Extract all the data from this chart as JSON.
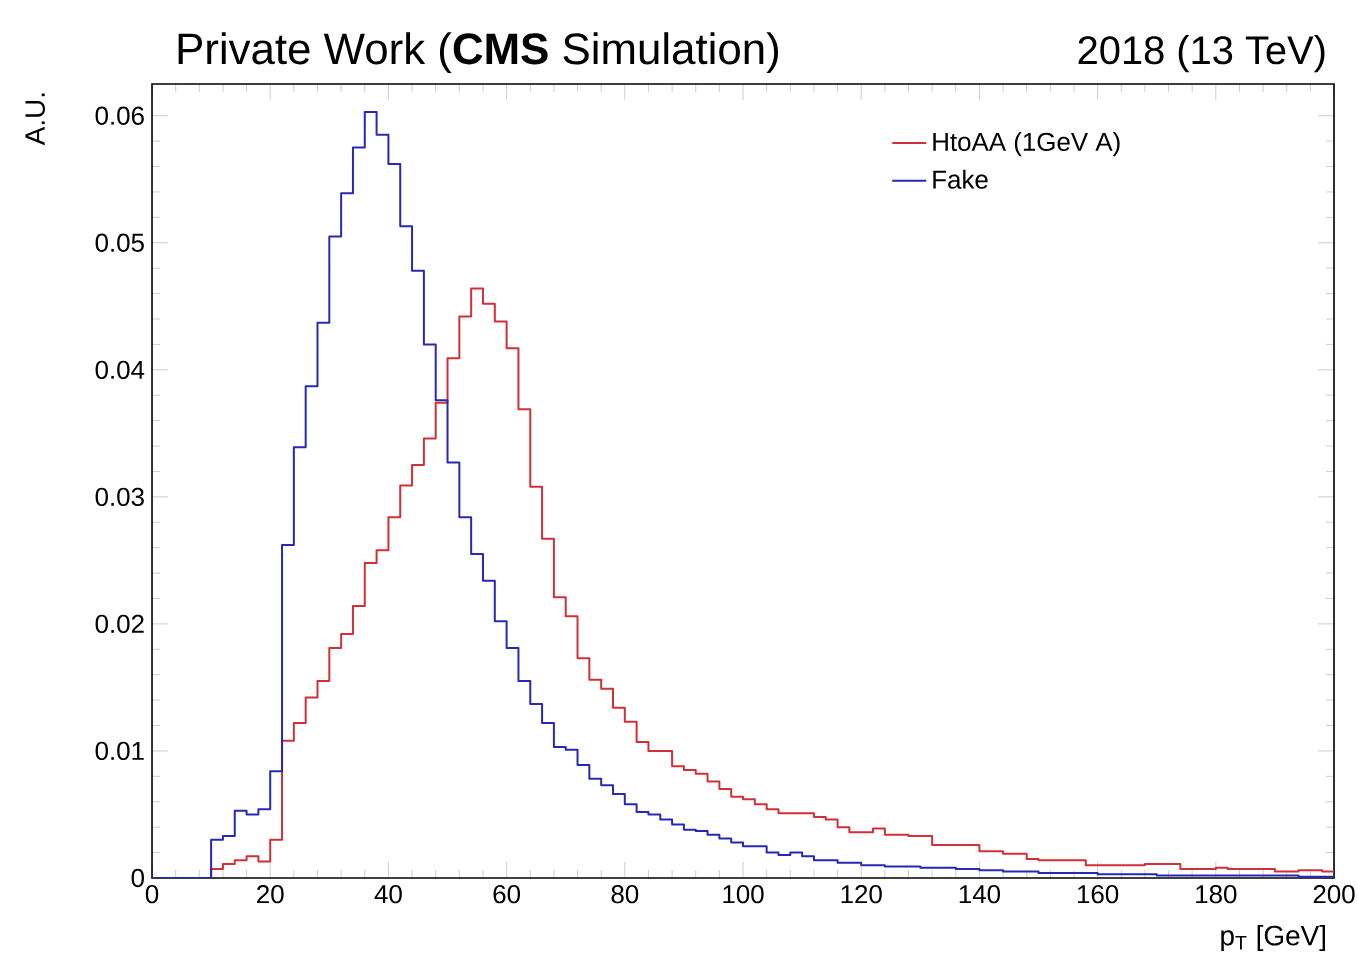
{
  "chart_data": {
    "type": "histogram",
    "title": "Private Work (**CMS** Simulation)",
    "annotations": [
      "2018 (13 TeV)"
    ],
    "xlabel": "p$_{T}$ [GeV]",
    "ylabel": "A.U.",
    "bins": [
      0,
      2,
      4,
      6,
      8,
      10,
      12,
      14,
      16,
      18,
      20,
      22,
      24,
      26,
      28,
      30,
      32,
      34,
      36,
      38,
      40,
      42,
      44,
      46,
      48,
      50,
      52,
      54,
      56,
      58,
      60,
      62,
      64,
      66,
      68,
      70,
      72,
      74,
      76,
      78,
      80,
      82,
      84,
      86,
      88,
      90,
      92,
      94,
      96,
      98,
      100,
      102,
      104,
      106,
      108,
      110,
      112,
      114,
      116,
      118,
      120,
      122,
      124,
      126,
      128,
      130,
      132,
      134,
      136,
      138,
      140,
      142,
      144,
      146,
      148,
      150,
      152,
      154,
      156,
      158,
      160,
      162,
      164,
      166,
      168,
      170,
      172,
      174,
      176,
      178,
      180,
      182,
      184,
      186,
      188,
      190,
      192,
      194,
      196,
      198,
      200
    ],
    "series": [
      {
        "name": "HtoAA (1GeV A)",
        "color": "#d03038",
        "values": [
          0,
          0,
          0,
          0,
          0,
          0.0007,
          0.0011,
          0.0014,
          0.0017,
          0.0013,
          0.003,
          0.0108,
          0.0122,
          0.0142,
          0.0155,
          0.0181,
          0.0192,
          0.0214,
          0.0248,
          0.0258,
          0.0284,
          0.0309,
          0.0325,
          0.0346,
          0.0374,
          0.0409,
          0.0442,
          0.0464,
          0.0452,
          0.0438,
          0.0417,
          0.0369,
          0.0308,
          0.0267,
          0.0221,
          0.0206,
          0.0173,
          0.0156,
          0.0149,
          0.0134,
          0.0123,
          0.0107,
          0.01,
          0.01,
          0.0088,
          0.0085,
          0.0082,
          0.0076,
          0.007,
          0.0064,
          0.0062,
          0.0058,
          0.0054,
          0.0051,
          0.0051,
          0.0051,
          0.0048,
          0.0046,
          0.004,
          0.0036,
          0.0036,
          0.0039,
          0.0034,
          0.0034,
          0.0033,
          0.0033,
          0.0026,
          0.0026,
          0.0026,
          0.0026,
          0.0021,
          0.0021,
          0.0019,
          0.0019,
          0.0015,
          0.0014,
          0.0014,
          0.0014,
          0.0014,
          0.001,
          0.001,
          0.001,
          0.001,
          0.001,
          0.0011,
          0.0011,
          0.0011,
          0.0007,
          0.0007,
          0.0007,
          0.0008,
          0.0007,
          0.0007,
          0.0007,
          0.0007,
          0.0005,
          0.0005,
          0.0006,
          0.0006,
          0.0005
        ]
      },
      {
        "name": "Fake",
        "color": "#2828b4",
        "values": [
          0,
          0,
          0,
          0,
          0,
          0.003,
          0.0033,
          0.0053,
          0.005,
          0.0054,
          0.0084,
          0.0262,
          0.0339,
          0.0387,
          0.0437,
          0.0505,
          0.0539,
          0.0575,
          0.0603,
          0.0585,
          0.0562,
          0.0513,
          0.0478,
          0.042,
          0.0376,
          0.0327,
          0.0284,
          0.0255,
          0.0234,
          0.0202,
          0.0181,
          0.0155,
          0.0137,
          0.0122,
          0.0103,
          0.0101,
          0.0089,
          0.0078,
          0.0073,
          0.0066,
          0.0058,
          0.0052,
          0.005,
          0.0046,
          0.0042,
          0.0038,
          0.0037,
          0.0034,
          0.0031,
          0.0028,
          0.0025,
          0.0025,
          0.002,
          0.0018,
          0.002,
          0.0017,
          0.0014,
          0.0014,
          0.0012,
          0.0012,
          0.001,
          0.001,
          0.0009,
          0.0009,
          0.0009,
          0.0008,
          0.0008,
          0.0008,
          0.0007,
          0.0007,
          0.0006,
          0.0006,
          0.0005,
          0.0005,
          0.0005,
          0.0004,
          0.0004,
          0.0004,
          0.0004,
          0.0004,
          0.0003,
          0.0003,
          0.0003,
          0.0003,
          0.0003,
          0.0002,
          0.0002,
          0.0002,
          0.0002,
          0.0002,
          0.0002,
          0.0002,
          0.0002,
          0.0002,
          0.0002,
          0.0002,
          0.0002,
          0.0001,
          0.0001,
          0.0001
        ]
      }
    ],
    "xlim": [
      0,
      200
    ],
    "ylim": [
      0,
      0.0625
    ],
    "xticks": [
      0,
      20,
      40,
      60,
      80,
      100,
      120,
      140,
      160,
      180,
      200
    ],
    "yticks": [
      0,
      0.01,
      0.02,
      0.03,
      0.04,
      0.05,
      0.06
    ],
    "grid": false,
    "legend": "top right"
  }
}
